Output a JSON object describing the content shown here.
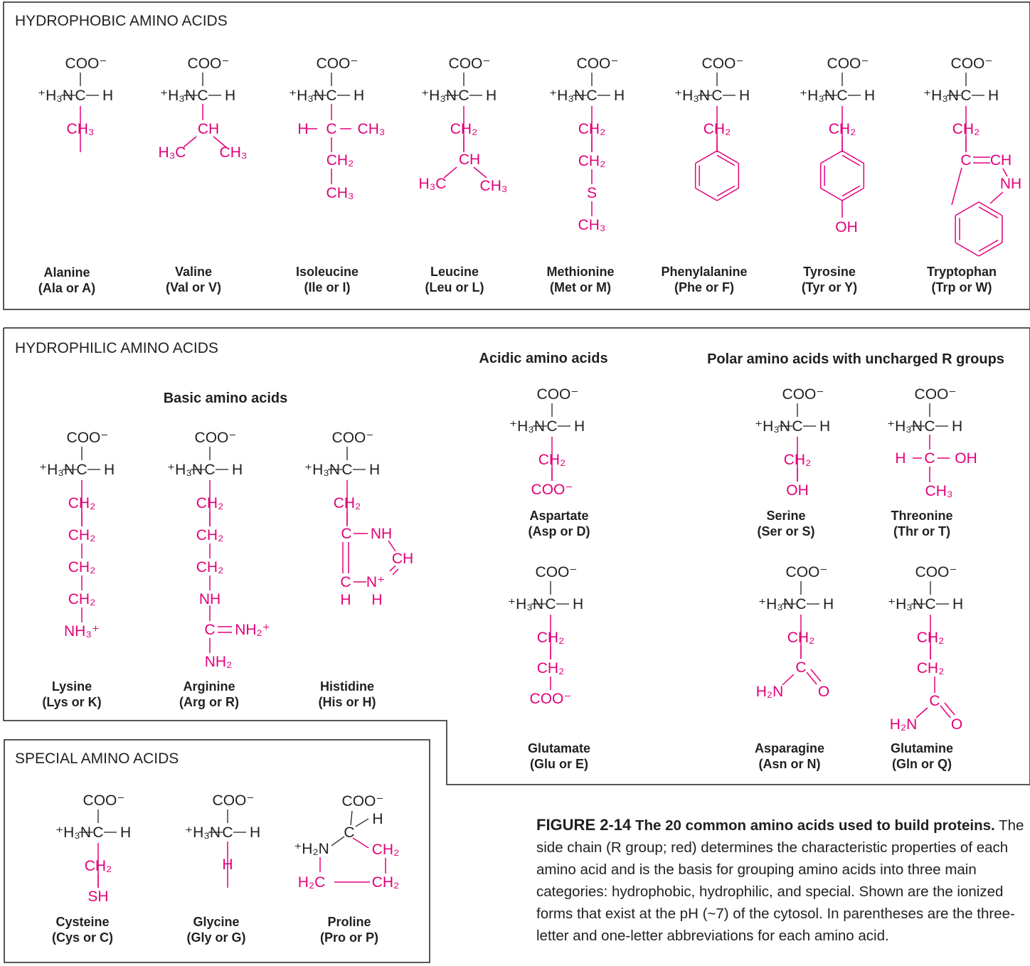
{
  "sections": {
    "hydrophobic": "HYDROPHOBIC AMINO ACIDS",
    "hydrophilic": "HYDROPHILIC AMINO ACIDS",
    "special": "SPECIAL AMINO ACIDS"
  },
  "subgroups": {
    "basic": "Basic amino acids",
    "acidic": "Acidic amino acids",
    "polar": "Polar amino acids with uncharged R groups"
  },
  "amino_acids": [
    {
      "name": "Alanine",
      "abbr": "(Ala or A)"
    },
    {
      "name": "Valine",
      "abbr": "(Val or V)"
    },
    {
      "name": "Isoleucine",
      "abbr": "(Ile or I)"
    },
    {
      "name": "Leucine",
      "abbr": "(Leu or L)"
    },
    {
      "name": "Methionine",
      "abbr": "(Met or M)"
    },
    {
      "name": "Phenylalanine",
      "abbr": "(Phe or F)"
    },
    {
      "name": "Tyrosine",
      "abbr": "(Tyr or Y)"
    },
    {
      "name": "Tryptophan",
      "abbr": "(Trp or W)"
    },
    {
      "name": "Lysine",
      "abbr": "(Lys or K)"
    },
    {
      "name": "Arginine",
      "abbr": "(Arg or R)"
    },
    {
      "name": "Histidine",
      "abbr": "(His or H)"
    },
    {
      "name": "Aspartate",
      "abbr": "(Asp or D)"
    },
    {
      "name": "Glutamate",
      "abbr": "(Glu or E)"
    },
    {
      "name": "Serine",
      "abbr": "(Ser or S)"
    },
    {
      "name": "Threonine",
      "abbr": "(Thr or T)"
    },
    {
      "name": "Asparagine",
      "abbr": "(Asn or N)"
    },
    {
      "name": "Glutamine",
      "abbr": "(Gln or Q)"
    },
    {
      "name": "Cysteine",
      "abbr": "(Cys or C)"
    },
    {
      "name": "Glycine",
      "abbr": "(Gly or G)"
    },
    {
      "name": "Proline",
      "abbr": "(Pro or P)"
    }
  ],
  "caption": {
    "figure": "FIGURE 2-14",
    "title": "The 20 common amino acids used to build proteins.",
    "text": "The side chain (R group; red) determines the characteristic properties of each amino acid and is the basis for grouping amino acids into three main categories: hydrophobic, hydrophilic, and special. Shown are the ionized forms that exist at the pH (~7) of the cytosol. In parentheses are the three-letter and one-letter abbreviations for each amino acid."
  },
  "colors": {
    "side_chain": "#e2007a",
    "backbone": "#231f20"
  }
}
